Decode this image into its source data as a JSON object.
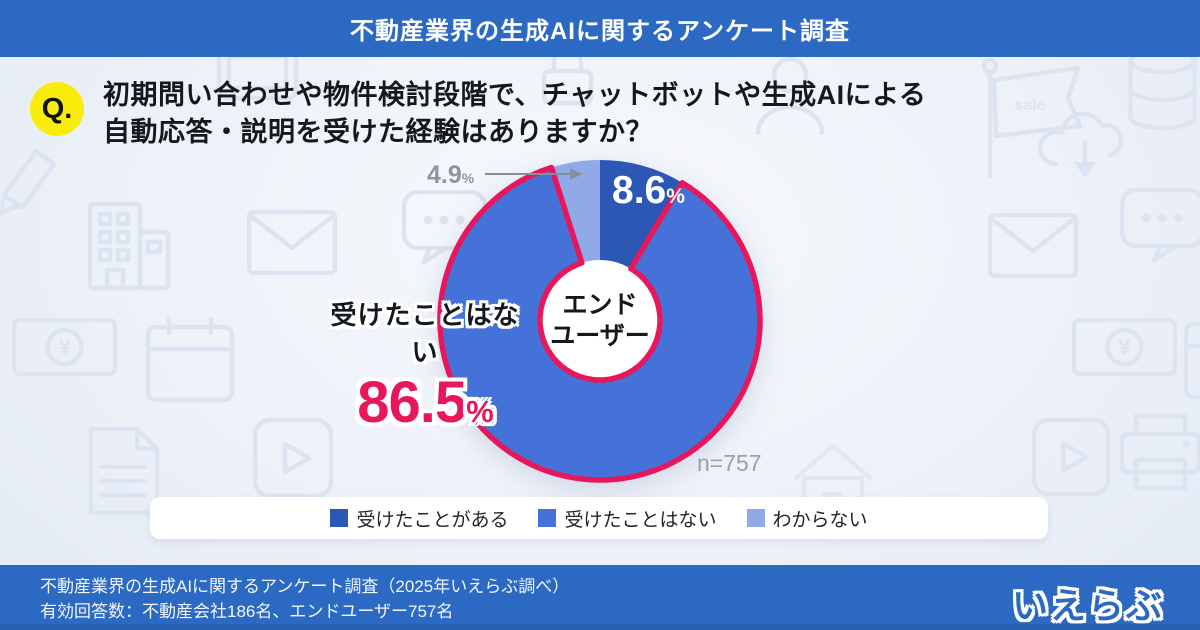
{
  "header": {
    "title": "不動産業界の生成AIに関するアンケート調査"
  },
  "question": {
    "badge": "Q.",
    "line1": "初期問い合わせや物件検討段階で、チャットボットや生成AIによる",
    "line2": "自動応答・説明を受けた経験はありますか？"
  },
  "chart_data": {
    "type": "pie",
    "subtype": "donut",
    "categories": [
      "受けたことがある",
      "受けたことはない",
      "わからない"
    ],
    "values": [
      8.6,
      86.5,
      4.9
    ],
    "colors": [
      "#2d57b5",
      "#4472d8",
      "#90a9e7"
    ],
    "start_angle_deg": 0,
    "direction": "clockwise",
    "highlight_index": 1,
    "highlight_color": "#e8175c",
    "labels": {
      "have": {
        "num": "8.6",
        "unit": "%"
      },
      "unknown": {
        "num": "4.9",
        "unit": "%"
      }
    },
    "callout": {
      "label": "受けたことはない",
      "num": "86.5",
      "unit": "%"
    },
    "center": {
      "line1": "エンド",
      "line2": "ユーザー"
    },
    "n_label": "n=757",
    "legend_position": "bottom"
  },
  "legend": {
    "items": [
      {
        "label": "受けたことがある",
        "color": "#2d57b5"
      },
      {
        "label": "受けたことはない",
        "color": "#4472d8"
      },
      {
        "label": "わからない",
        "color": "#90a9e7"
      }
    ]
  },
  "footer": {
    "line1": "不動産業界の生成AIに関するアンケート調査（2025年いえらぶ調べ）",
    "line2": "有効回答数：不動産会社186名、エンドユーザー757名",
    "logo": "いえらぶ"
  },
  "background_icons": [
    "pencil-icon",
    "building-icon",
    "envelope-icon",
    "speech-bubble-icon",
    "banknote-icon",
    "calendar-icon",
    "play-icon",
    "document-icon",
    "flag-sale-icon",
    "cloud-download-icon",
    "database-icon",
    "lock-icon",
    "monitor-icon",
    "person-icon",
    "printer-icon",
    "house-icon"
  ]
}
